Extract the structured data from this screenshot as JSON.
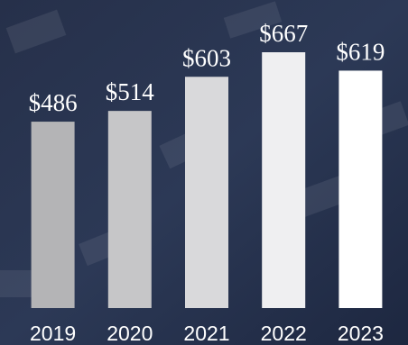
{
  "chart_data": {
    "type": "bar",
    "categories": [
      "2019",
      "2020",
      "2021",
      "2022",
      "2023"
    ],
    "values": [
      486,
      514,
      603,
      667,
      619
    ],
    "value_labels": [
      "$486",
      "$514",
      "$603",
      "$667",
      "$619"
    ],
    "colors": [
      "#b4b4b6",
      "#c6c6c8",
      "#d9d9db",
      "#efeff1",
      "#ffffff"
    ]
  }
}
